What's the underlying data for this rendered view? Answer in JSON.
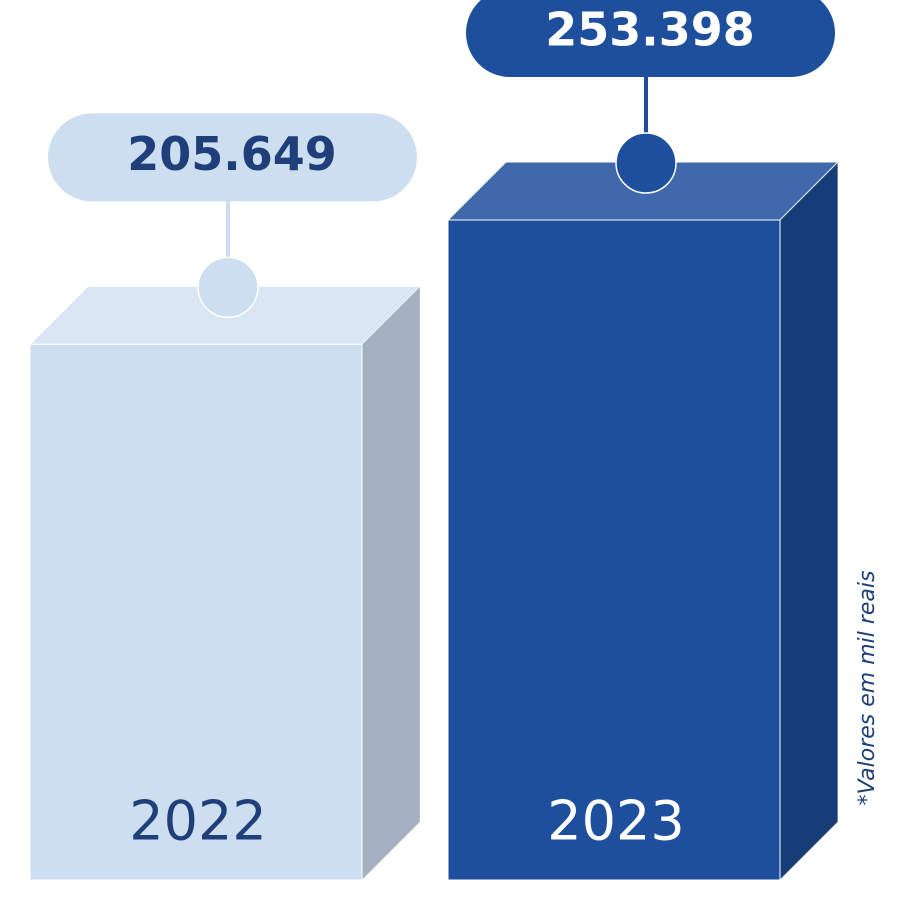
{
  "chart_data": {
    "type": "bar",
    "categories": [
      "2022",
      "2023"
    ],
    "values": [
      205649,
      253398
    ],
    "value_labels": [
      "205.649",
      "253.398"
    ],
    "colors": [
      "#cddef0",
      "#1e4f9c"
    ],
    "note": "*Valores em mil reais"
  }
}
